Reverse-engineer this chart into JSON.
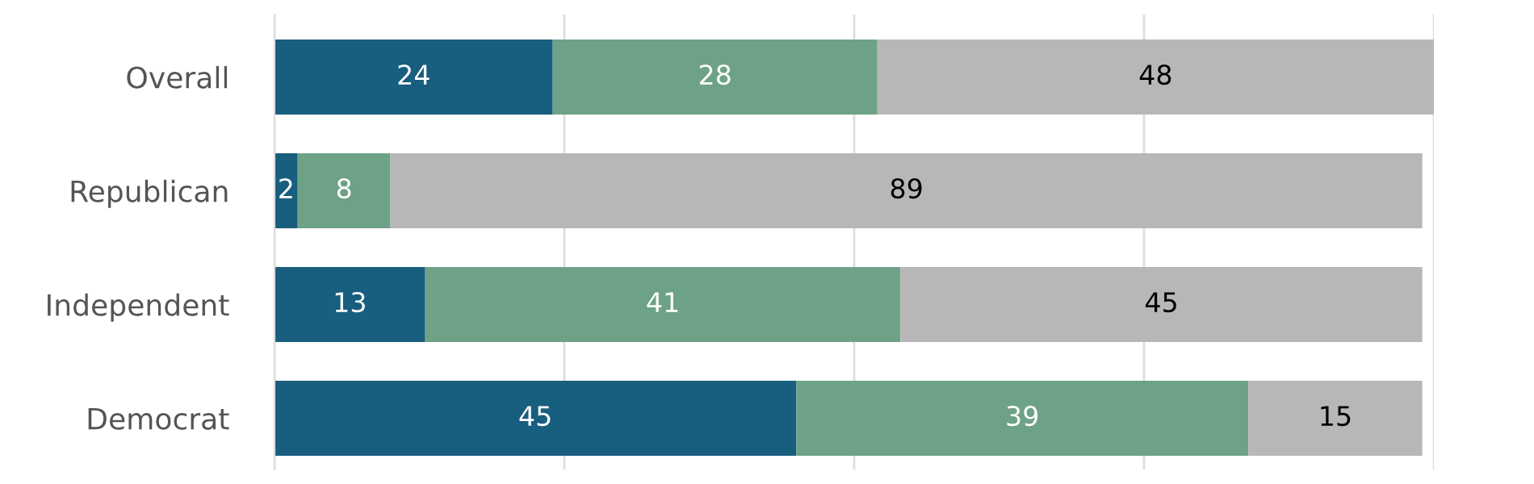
{
  "chart_data": {
    "type": "bar",
    "orientation": "horizontal",
    "stacked": true,
    "categories": [
      "Overall",
      "Republican",
      "Independent",
      "Democrat"
    ],
    "series": [
      {
        "color": "#185e7e",
        "values": [
          24,
          2,
          13,
          45
        ]
      },
      {
        "color": "#6ea287",
        "values": [
          28,
          8,
          41,
          39
        ]
      },
      {
        "color": "#b7b7b7",
        "values": [
          48,
          89,
          45,
          15
        ]
      }
    ],
    "xlim": [
      0,
      100
    ],
    "xticks": [
      {
        "value": 0,
        "label": null
      },
      {
        "value": 25,
        "label": null
      },
      {
        "value": 50,
        "label": null
      },
      {
        "value": 75,
        "label": null
      },
      {
        "value": 100,
        "label": null
      }
    ],
    "tick_labels": "y",
    "grid": "x",
    "data_labels": true
  }
}
